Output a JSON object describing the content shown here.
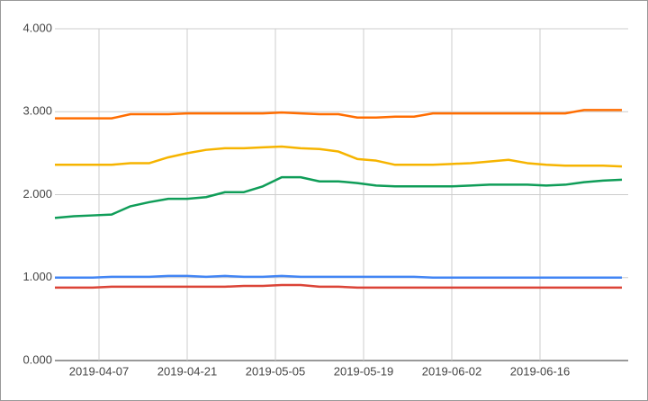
{
  "chart_data": {
    "type": "line",
    "x": [
      "2019-03-31",
      "2019-04-03",
      "2019-04-06",
      "2019-04-09",
      "2019-04-12",
      "2019-04-15",
      "2019-04-18",
      "2019-04-21",
      "2019-04-24",
      "2019-04-27",
      "2019-04-30",
      "2019-05-03",
      "2019-05-06",
      "2019-05-09",
      "2019-05-12",
      "2019-05-15",
      "2019-05-18",
      "2019-05-21",
      "2019-05-24",
      "2019-05-27",
      "2019-05-30",
      "2019-06-02",
      "2019-06-05",
      "2019-06-08",
      "2019-06-11",
      "2019-06-14",
      "2019-06-17",
      "2019-06-20",
      "2019-06-23",
      "2019-06-26",
      "2019-06-29"
    ],
    "series": [
      {
        "color": "#ff6d01",
        "values": [
          2.92,
          2.92,
          2.92,
          2.92,
          2.97,
          2.97,
          2.97,
          2.98,
          2.98,
          2.98,
          2.98,
          2.98,
          2.99,
          2.98,
          2.97,
          2.97,
          2.93,
          2.93,
          2.94,
          2.94,
          2.98,
          2.98,
          2.98,
          2.98,
          2.98,
          2.98,
          2.98,
          2.98,
          3.02,
          3.02,
          3.02
        ]
      },
      {
        "color": "#f6b400",
        "values": [
          2.36,
          2.36,
          2.36,
          2.36,
          2.38,
          2.38,
          2.45,
          2.5,
          2.54,
          2.56,
          2.56,
          2.57,
          2.58,
          2.56,
          2.55,
          2.52,
          2.43,
          2.41,
          2.36,
          2.36,
          2.36,
          2.37,
          2.38,
          2.4,
          2.42,
          2.38,
          2.36,
          2.35,
          2.35,
          2.35,
          2.34
        ]
      },
      {
        "color": "#0f9d58",
        "values": [
          1.72,
          1.74,
          1.75,
          1.76,
          1.86,
          1.91,
          1.95,
          1.95,
          1.97,
          2.03,
          2.03,
          2.1,
          2.21,
          2.21,
          2.16,
          2.16,
          2.14,
          2.11,
          2.1,
          2.1,
          2.1,
          2.1,
          2.11,
          2.12,
          2.12,
          2.12,
          2.11,
          2.12,
          2.15,
          2.17,
          2.18
        ]
      },
      {
        "color": "#4285f4",
        "values": [
          1.0,
          1.0,
          1.0,
          1.01,
          1.01,
          1.01,
          1.02,
          1.02,
          1.01,
          1.02,
          1.01,
          1.01,
          1.02,
          1.01,
          1.01,
          1.01,
          1.01,
          1.01,
          1.01,
          1.01,
          1.0,
          1.0,
          1.0,
          1.0,
          1.0,
          1.0,
          1.0,
          1.0,
          1.0,
          1.0,
          1.0
        ]
      },
      {
        "color": "#db4437",
        "values": [
          0.88,
          0.88,
          0.88,
          0.89,
          0.89,
          0.89,
          0.89,
          0.89,
          0.89,
          0.89,
          0.9,
          0.9,
          0.91,
          0.91,
          0.89,
          0.89,
          0.88,
          0.88,
          0.88,
          0.88,
          0.88,
          0.88,
          0.88,
          0.88,
          0.88,
          0.88,
          0.88,
          0.88,
          0.88,
          0.88,
          0.88
        ]
      }
    ],
    "xlim": [
      "2019-03-31",
      "2019-06-30"
    ],
    "xticks": [
      "2019-04-07",
      "2019-04-21",
      "2019-05-05",
      "2019-05-19",
      "2019-06-02",
      "2019-06-16"
    ],
    "ylim": [
      0,
      4
    ],
    "yticks": [
      {
        "value": 0,
        "label": "0.000"
      },
      {
        "value": 1,
        "label": "1.000"
      },
      {
        "value": 2,
        "label": "2.000"
      },
      {
        "value": 3,
        "label": "3.000"
      },
      {
        "value": 4,
        "label": "4.000"
      }
    ],
    "grid": true
  }
}
